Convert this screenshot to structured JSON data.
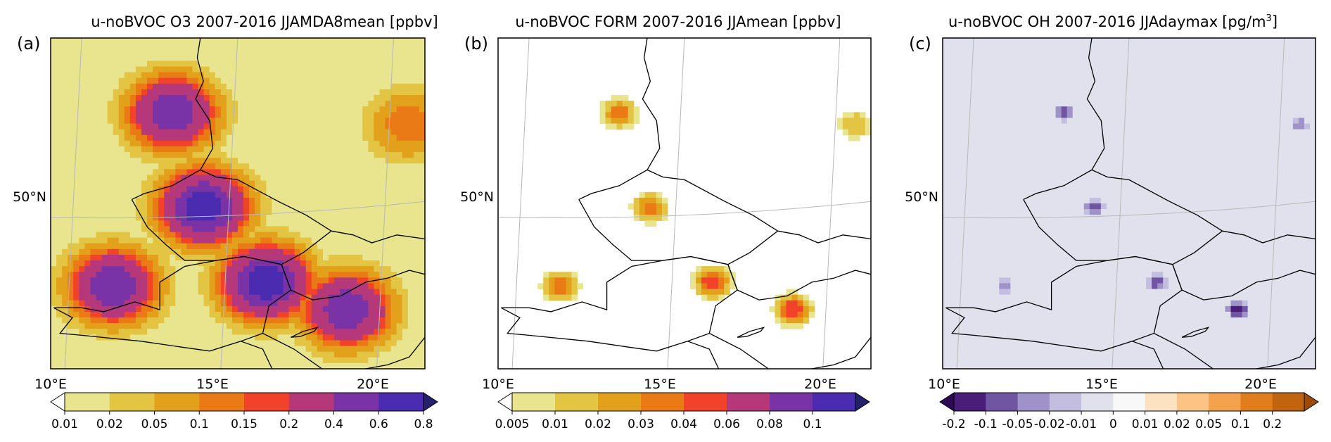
{
  "chart_data": [
    {
      "type": "heatmap",
      "panel_label": "(a)",
      "title": "u-noBVOC O3 2007-2016 JJAMDA8mean [ppbv]",
      "x_ticks": [
        "10°E",
        "15°E",
        "20°E"
      ],
      "y_ticks": [
        "50°N"
      ],
      "colorbar": {
        "ticks": [
          "0.01",
          "0.02",
          "0.05",
          "0.1",
          "0.15",
          "0.2",
          "0.4",
          "0.6",
          "0.8"
        ],
        "colors": [
          "#e8e58e",
          "#e3c443",
          "#e3a01a",
          "#ea7a16",
          "#f2432a",
          "#b5397a",
          "#7a33a6",
          "#4b2bb0"
        ],
        "under_color": "#ffffff",
        "over_color": "#24206a",
        "extend": "both"
      },
      "background_level": 0.01,
      "hotspots": [
        {
          "lon": 13.4,
          "lat": 52.5,
          "peak": 0.6
        },
        {
          "lon": 14.4,
          "lat": 50.1,
          "peak": 0.8
        },
        {
          "lon": 16.4,
          "lat": 48.2,
          "peak": 0.8
        },
        {
          "lon": 19.0,
          "lat": 47.5,
          "peak": 0.6
        },
        {
          "lon": 11.5,
          "lat": 48.1,
          "peak": 0.6
        },
        {
          "lon": 21.0,
          "lat": 52.2,
          "peak": 0.15
        }
      ]
    },
    {
      "type": "heatmap",
      "panel_label": "(b)",
      "title": "u-noBVOC FORM 2007-2016 JJAmean [ppbv]",
      "x_ticks": [
        "10°E",
        "15°E",
        "20°E"
      ],
      "y_ticks": [
        "50°N"
      ],
      "colorbar": {
        "ticks": [
          "0.005",
          "0.01",
          "0.02",
          "0.03",
          "0.04",
          "0.06",
          "0.08",
          "0.1"
        ],
        "colors": [
          "#e8e58e",
          "#e3c443",
          "#e3a01a",
          "#ea7a16",
          "#f2432a",
          "#b5397a",
          "#7a33a6",
          "#4b2bb0"
        ],
        "under_color": "#ffffff",
        "over_color": "#24206a",
        "extend": "both"
      },
      "background_level": 0,
      "hotspots": [
        {
          "lon": 13.4,
          "lat": 52.5,
          "peak": 0.04
        },
        {
          "lon": 14.4,
          "lat": 50.1,
          "peak": 0.04
        },
        {
          "lon": 16.4,
          "lat": 48.2,
          "peak": 0.06
        },
        {
          "lon": 19.0,
          "lat": 47.5,
          "peak": 0.06
        },
        {
          "lon": 11.5,
          "lat": 48.1,
          "peak": 0.04
        },
        {
          "lon": 21.0,
          "lat": 52.2,
          "peak": 0.02
        }
      ]
    },
    {
      "type": "heatmap",
      "panel_label": "(c)",
      "title": "u-noBVOC OH 2007-2016 JJAdaymax",
      "units": "[pg/m3]",
      "x_ticks": [
        "10°E",
        "15°E",
        "20°E"
      ],
      "y_ticks": [
        "50°N"
      ],
      "colorbar": {
        "ticks": [
          "-0.2",
          "-0.1",
          "-0.05",
          "-0.02",
          "-0.01",
          "0",
          "0.01",
          "0.02",
          "0.05",
          "0.1",
          "0.2"
        ],
        "colors": [
          "#4a1d78",
          "#7055a3",
          "#9f92c8",
          "#c3bedf",
          "#e1e1ee",
          "#f8f8f8",
          "#fde2c2",
          "#fcc384",
          "#f5a24f",
          "#e07d1d",
          "#c0640f"
        ],
        "under_color": "#2d0a55",
        "over_color": "#9c4a05",
        "extend": "both"
      },
      "background_level": -0.01,
      "hotspots": [
        {
          "lon": 13.4,
          "lat": 52.5,
          "peak": -0.1
        },
        {
          "lon": 14.4,
          "lat": 50.1,
          "peak": -0.1
        },
        {
          "lon": 16.4,
          "lat": 48.2,
          "peak": -0.1
        },
        {
          "lon": 19.0,
          "lat": 47.5,
          "peak": -0.2
        },
        {
          "lon": 11.5,
          "lat": 48.1,
          "peak": -0.05
        },
        {
          "lon": 21.0,
          "lat": 52.2,
          "peak": -0.05
        }
      ]
    }
  ]
}
